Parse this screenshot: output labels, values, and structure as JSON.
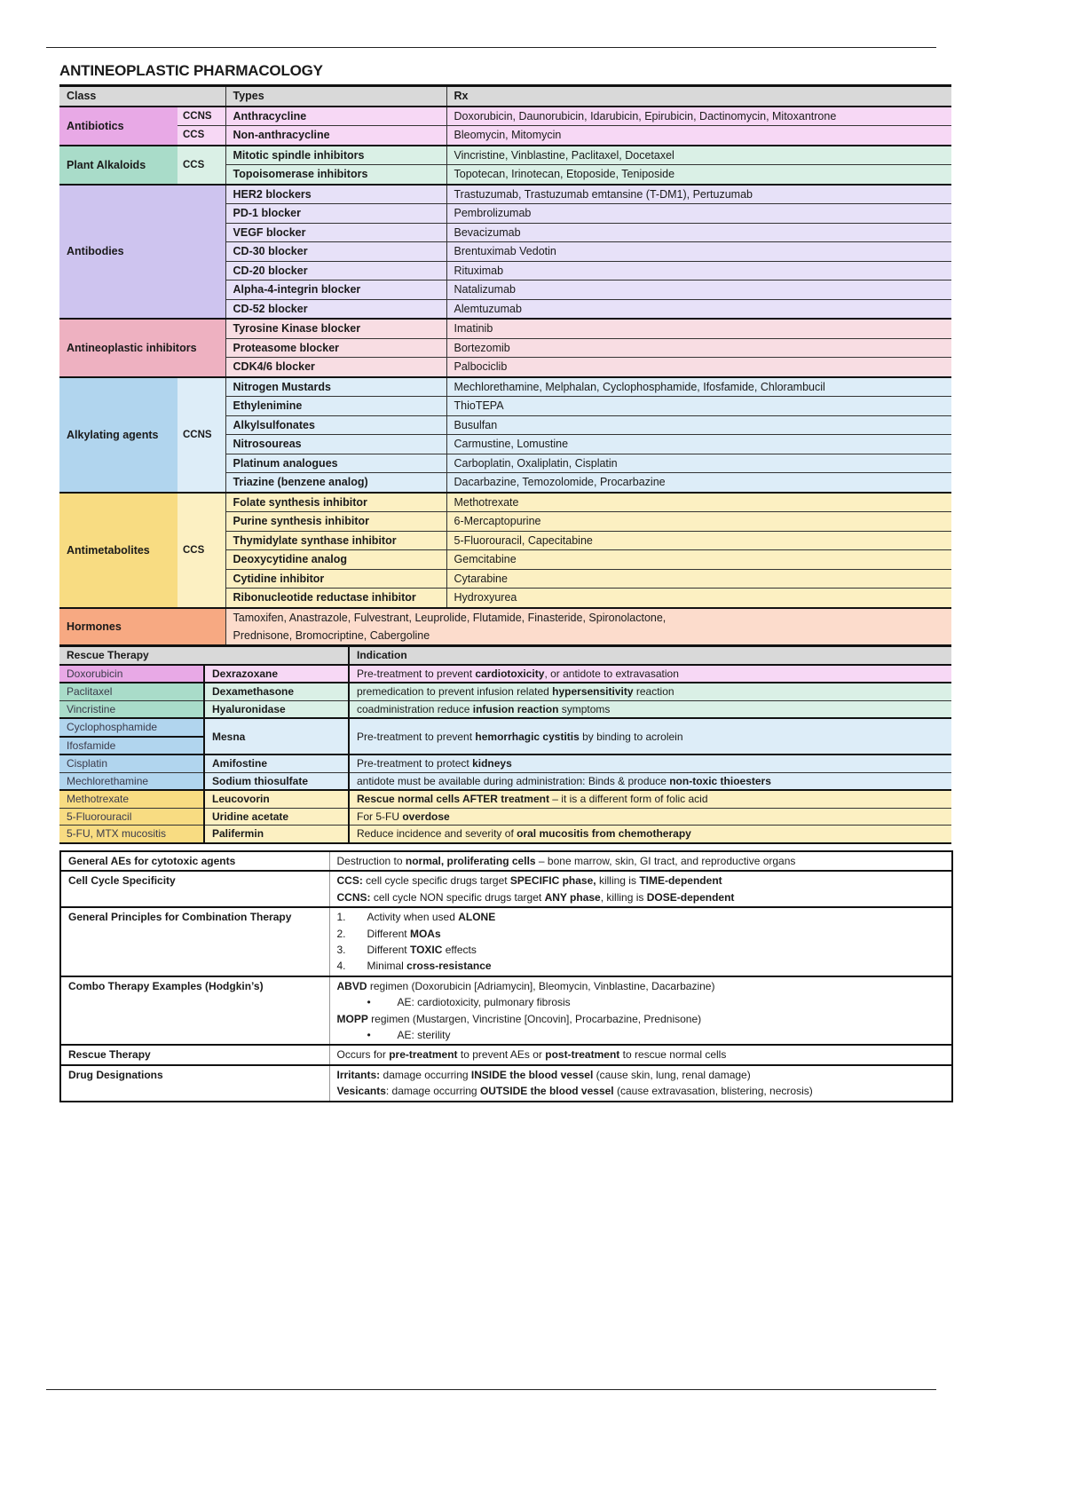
{
  "title": "ANTINEOPLASTIC PHARMACOLOGY",
  "colors": {
    "antibiotics": [
      "#e8a9e6",
      "#f7d8f5"
    ],
    "plant": [
      "#a9dcc9",
      "#daf0e6"
    ],
    "antibodies": [
      "#cec4ef",
      "#e7e1f8"
    ],
    "inhibitors": [
      "#eeb1c1",
      "#f8dde3"
    ],
    "alkylating": [
      "#b1d5ee",
      "#ddedf8"
    ],
    "antimetabolites": [
      "#f8dc82",
      "#fcf0c2"
    ],
    "hormones": [
      "#f7a982",
      "#fcdccc"
    ]
  },
  "classes_table": {
    "headers": [
      "Class",
      "Types",
      "Rx"
    ],
    "groups": [
      {
        "class": "Antibiotics",
        "color": "antibiotics",
        "subs": [
          {
            "label": "CCNS",
            "rows": [
              [
                "Anthracycline",
                "Doxorubicin, Daunorubicin, Idarubicin, Epirubicin, Dactinomycin, Mitoxantrone"
              ]
            ]
          },
          {
            "label": "CCS",
            "rows": [
              [
                "Non-anthracycline",
                "Bleomycin, Mitomycin"
              ]
            ]
          }
        ]
      },
      {
        "class": "Plant Alkaloids",
        "color": "plant",
        "subs": [
          {
            "label": "CCS",
            "rows": [
              [
                "Mitotic spindle inhibitors",
                "Vincristine, Vinblastine, Paclitaxel, Docetaxel"
              ],
              [
                "Topoisomerase inhibitors",
                "Topotecan, Irinotecan, Etoposide, Teniposide"
              ]
            ]
          }
        ]
      },
      {
        "class": "Antibodies",
        "color": "antibodies",
        "subs": [
          {
            "label": "",
            "rows": [
              [
                "HER2 blockers",
                "Trastuzumab, Trastuzumab emtansine (T-DM1), Pertuzumab"
              ],
              [
                "PD-1 blocker",
                "Pembrolizumab"
              ],
              [
                "VEGF blocker",
                "Bevacizumab"
              ],
              [
                "CD-30 blocker",
                "Brentuximab Vedotin"
              ],
              [
                "CD-20 blocker",
                "Rituximab"
              ],
              [
                "Alpha-4-integrin blocker",
                "Natalizumab"
              ],
              [
                "CD-52 blocker",
                "Alemtuzumab"
              ]
            ]
          }
        ]
      },
      {
        "class": "Antineoplastic inhibitors",
        "color": "inhibitors",
        "subs": [
          {
            "label": "",
            "rows": [
              [
                "Tyrosine Kinase blocker",
                "Imatinib"
              ],
              [
                "Proteasome blocker",
                "Bortezomib"
              ],
              [
                "CDK4/6 blocker",
                "Palbociclib"
              ]
            ]
          }
        ]
      },
      {
        "class": "Alkylating agents",
        "color": "alkylating",
        "subs": [
          {
            "label": "CCNS",
            "rows": [
              [
                "Nitrogen Mustards",
                "Mechlorethamine, Melphalan, Cyclophosphamide, Ifosfamide, Chlorambucil"
              ],
              [
                "Ethylenimine",
                "ThioTEPA"
              ],
              [
                "Alkylsulfonates",
                "Busulfan"
              ],
              [
                "Nitrosoureas",
                "Carmustine, Lomustine"
              ],
              [
                "Platinum analogues",
                "Carboplatin, Oxaliplatin, Cisplatin"
              ],
              [
                "Triazine (benzene analog)",
                "Dacarbazine, Temozolomide, Procarbazine"
              ]
            ]
          }
        ]
      },
      {
        "class": "Antimetabolites",
        "color": "antimetabolites",
        "subs": [
          {
            "label": "CCS",
            "rows": [
              [
                "Folate synthesis inhibitor",
                "Methotrexate"
              ],
              [
                "Purine synthesis inhibitor",
                "6-Mercaptopurine"
              ],
              [
                "Thymidylate synthase inhibitor",
                "5-Fluorouracil, Capecitabine"
              ],
              [
                "Deoxycytidine analog",
                "Gemcitabine"
              ],
              [
                "Cytidine inhibitor",
                "Cytarabine"
              ],
              [
                "Ribonucleotide reductase inhibitor",
                "Hydroxyurea"
              ]
            ]
          }
        ]
      }
    ],
    "hormones": {
      "class": "Hormones",
      "color": "hormones",
      "lines": [
        "Tamoxifen, Anastrazole, Fulvestrant, Leuprolide, Flutamide, Finasteride, Spironolactone,",
        "Prednisone, Bromocriptine, Cabergoline"
      ]
    }
  },
  "rescue_table": {
    "headers": [
      "Rescue Therapy",
      "Indication"
    ],
    "rows": [
      {
        "drugs": [
          "Doxorubicin"
        ],
        "rescue": "Dexrazoxane",
        "color": "antibiotics",
        "ind": [
          [
            "Pre-treatment to prevent ",
            0
          ],
          [
            "cardiotoxicity",
            1
          ],
          [
            ", or antidote to extravasation",
            0
          ]
        ]
      },
      {
        "drugs": [
          "Paclitaxel"
        ],
        "rescue": "Dexamethasone",
        "color": "plant",
        "ind": [
          [
            "premedication to prevent infusion related ",
            0
          ],
          [
            "hypersensitivity",
            1
          ],
          [
            " reaction",
            0
          ]
        ]
      },
      {
        "drugs": [
          "Vincristine"
        ],
        "rescue": "Hyaluronidase",
        "color": "plant",
        "ind": [
          [
            "coadministration reduce ",
            0
          ],
          [
            "infusion reaction",
            1
          ],
          [
            " symptoms",
            0
          ]
        ]
      },
      {
        "drugs": [
          "Cyclophosphamide",
          "Ifosfamide"
        ],
        "rescue": "Mesna",
        "color": "alkylating",
        "ind": [
          [
            "Pre-treatment to prevent ",
            0
          ],
          [
            "hemorrhagic cystitis",
            1
          ],
          [
            " by binding to acrolein",
            0
          ]
        ]
      },
      {
        "drugs": [
          "Cisplatin"
        ],
        "rescue": "Amifostine",
        "color": "alkylating",
        "ind": [
          [
            "Pre-treatment to protect ",
            0
          ],
          [
            "kidneys",
            1
          ]
        ]
      },
      {
        "drugs": [
          "Mechlorethamine"
        ],
        "rescue": "Sodium thiosulfate",
        "color": "alkylating",
        "ind": [
          [
            "antidote must be available during administration: Binds & produce ",
            0
          ],
          [
            "non-toxic thioesters",
            1
          ]
        ]
      },
      {
        "drugs": [
          "Methotrexate"
        ],
        "rescue": "Leucovorin",
        "color": "antimetabolites",
        "ind": [
          [
            "Rescue normal cells AFTER treatment",
            1
          ],
          [
            " – it is a different form of folic acid",
            0
          ]
        ]
      },
      {
        "drugs": [
          "5-Fluorouracil"
        ],
        "rescue": "Uridine acetate",
        "color": "antimetabolites",
        "ind": [
          [
            "For 5-FU ",
            0
          ],
          [
            "overdose",
            1
          ]
        ]
      },
      {
        "drugs": [
          "5-FU, MTX mucositis"
        ],
        "rescue": "Palifermin",
        "color": "antimetabolites",
        "ind": [
          [
            "Reduce incidence and severity of ",
            0
          ],
          [
            "oral mucositis from chemotherapy",
            1
          ]
        ]
      }
    ]
  },
  "principles_table": [
    {
      "label": "General AEs for cytotoxic agents",
      "lines": [
        {
          "seg": [
            [
              "Destruction to ",
              0
            ],
            [
              "normal, proliferating cells",
              1
            ],
            [
              " – bone marrow, skin, GI tract, and reproductive organs",
              0
            ]
          ]
        }
      ]
    },
    {
      "label": "Cell Cycle Specificity",
      "lines": [
        {
          "seg": [
            [
              "CCS:",
              1
            ],
            [
              " cell cycle specific drugs target ",
              0
            ],
            [
              "SPECIFIC phase,",
              1
            ],
            [
              " killing is ",
              0
            ],
            [
              "TIME-dependent",
              1
            ]
          ]
        },
        {
          "seg": [
            [
              "CCNS:",
              1
            ],
            [
              " cell cycle NON specific drugs target ",
              0
            ],
            [
              "ANY phase",
              1
            ],
            [
              ", killing is ",
              0
            ],
            [
              "DOSE-dependent",
              1
            ]
          ]
        }
      ]
    },
    {
      "label": "General Principles for Combination Therapy",
      "lines": [
        {
          "num": "1.",
          "seg": [
            [
              "Activity when used ",
              0
            ],
            [
              "ALONE",
              1
            ]
          ]
        },
        {
          "num": "2.",
          "seg": [
            [
              "Different ",
              0
            ],
            [
              "MOAs",
              1
            ]
          ]
        },
        {
          "num": "3.",
          "seg": [
            [
              "Different ",
              0
            ],
            [
              "TOXIC",
              1
            ],
            [
              " effects",
              0
            ]
          ]
        },
        {
          "num": "4.",
          "seg": [
            [
              "Minimal ",
              0
            ],
            [
              "cross-resistance",
              1
            ]
          ]
        }
      ]
    },
    {
      "label": "Combo Therapy Examples (Hodgkin’s)",
      "lines": [
        {
          "seg": [
            [
              "ABVD",
              1
            ],
            [
              " regimen (Doxorubicin [Adriamycin], Bleomycin, Vinblastine, Dacarbazine)",
              0
            ]
          ]
        },
        {
          "bullet": "•",
          "seg": [
            [
              "AE: cardiotoxicity, pulmonary fibrosis",
              0
            ]
          ]
        },
        {
          "seg": [
            [
              "MOPP",
              1
            ],
            [
              " regimen (Mustargen, Vincristine [Oncovin], Procarbazine, Prednisone)",
              0
            ]
          ]
        },
        {
          "bullet": "•",
          "seg": [
            [
              "AE: sterility",
              0
            ]
          ]
        }
      ]
    },
    {
      "label": "Rescue Therapy",
      "lines": [
        {
          "seg": [
            [
              "Occurs for ",
              0
            ],
            [
              "pre-treatment",
              1
            ],
            [
              " to prevent AEs or ",
              0
            ],
            [
              "post-treatment",
              1
            ],
            [
              " to rescue normal cells",
              0
            ]
          ]
        }
      ]
    },
    {
      "label": "Drug Designations",
      "lines": [
        {
          "seg": [
            [
              "Irritants:",
              1
            ],
            [
              " damage occurring ",
              0
            ],
            [
              "INSIDE the blood vessel",
              1
            ],
            [
              " (cause skin, lung, renal damage)",
              0
            ]
          ]
        },
        {
          "seg": [
            [
              "Vesicants",
              1
            ],
            [
              ": damage occurring ",
              0
            ],
            [
              "OUTSIDE the blood vessel",
              1
            ],
            [
              " (cause extravasation, blistering, necrosis)",
              0
            ]
          ]
        }
      ]
    }
  ]
}
